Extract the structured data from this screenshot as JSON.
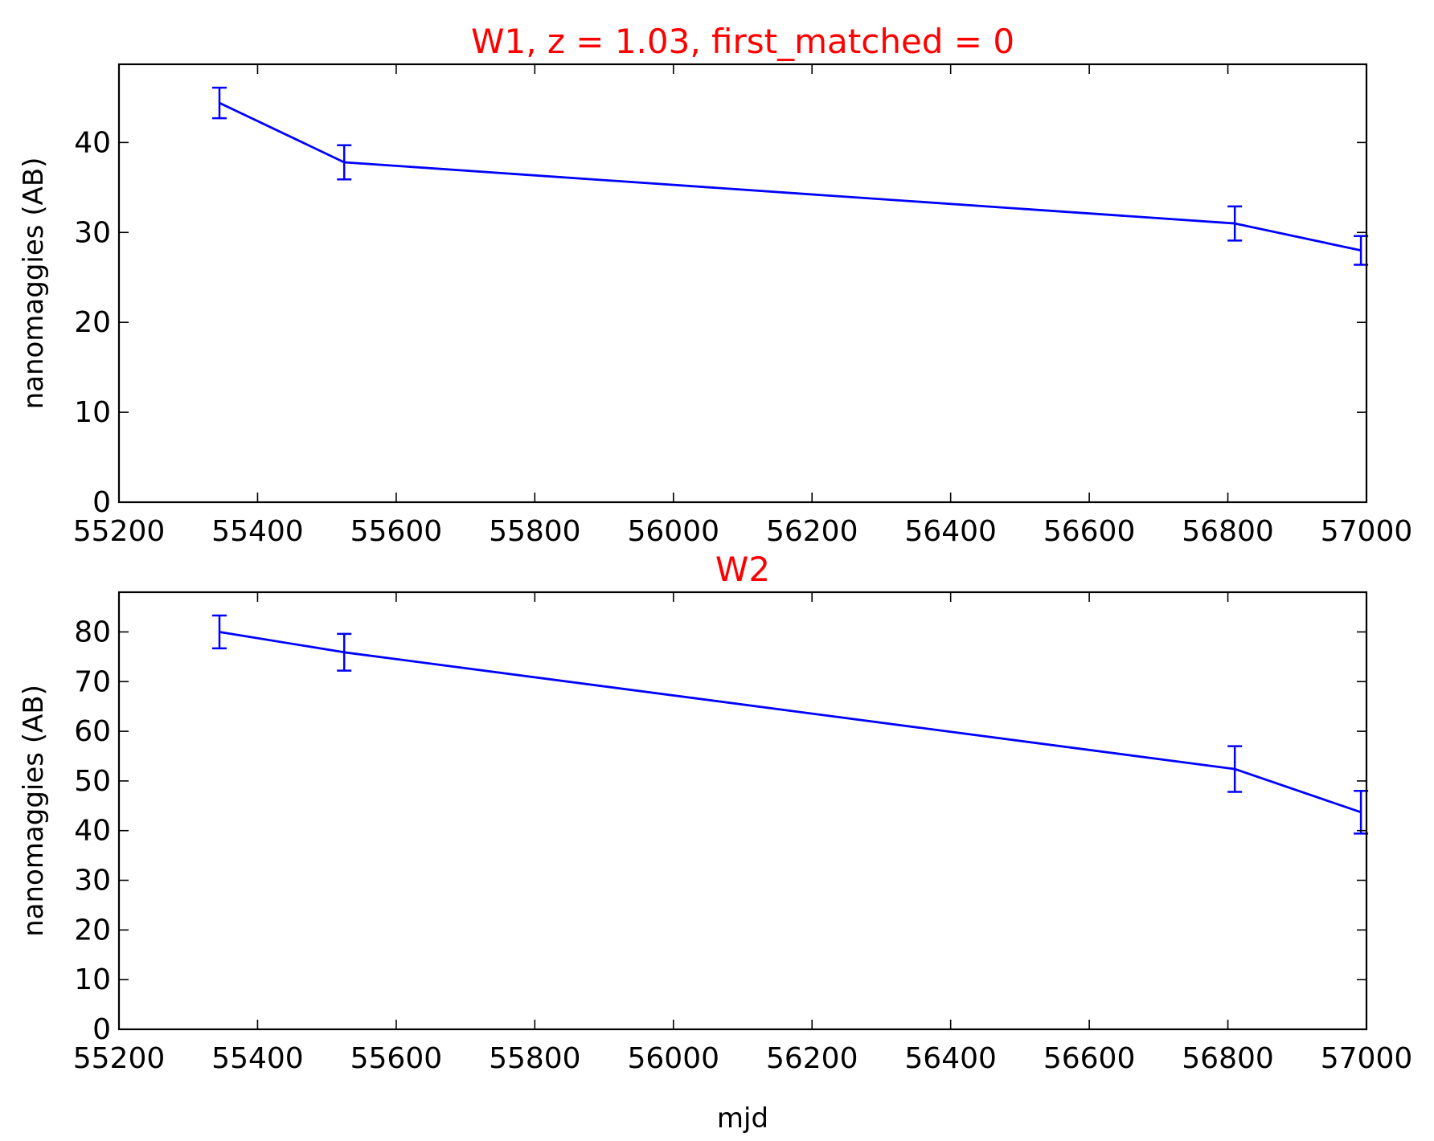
{
  "figure": {
    "xlabel": "mjd"
  },
  "colors": {
    "series": "#0000ff",
    "title": "#ff0000",
    "axes": "#000000",
    "background": "#ffffff"
  },
  "chart_data": [
    {
      "type": "line",
      "title": "W1, z = 1.03, first_matched = 0",
      "xlabel": "",
      "ylabel": "nanomaggies (AB)",
      "xlim": [
        55200,
        57000
      ],
      "ylim": [
        0,
        48.7
      ],
      "xticks": [
        55200,
        55400,
        55600,
        55800,
        56000,
        56200,
        56400,
        56600,
        56800,
        57000
      ],
      "yticks": [
        0,
        10,
        20,
        30,
        40
      ],
      "error_bars": true,
      "grid": false,
      "series": [
        {
          "x": [
            55345,
            55525,
            56810,
            56992
          ],
          "y": [
            44.4,
            37.8,
            31.0,
            28.0
          ],
          "yerr": [
            1.7,
            1.9,
            1.9,
            1.6
          ]
        }
      ]
    },
    {
      "type": "line",
      "title": "W2",
      "xlabel": "mjd",
      "ylabel": "nanomaggies (AB)",
      "xlim": [
        55200,
        57000
      ],
      "ylim": [
        0,
        88
      ],
      "xticks": [
        55200,
        55400,
        55600,
        55800,
        56000,
        56200,
        56400,
        56600,
        56800,
        57000
      ],
      "yticks": [
        0,
        10,
        20,
        30,
        40,
        50,
        60,
        70,
        80
      ],
      "error_bars": true,
      "grid": false,
      "series": [
        {
          "x": [
            55345,
            55525,
            56810,
            56992
          ],
          "y": [
            80.0,
            75.9,
            52.4,
            43.7
          ],
          "yerr": [
            3.3,
            3.7,
            4.6,
            4.3
          ]
        }
      ]
    }
  ]
}
